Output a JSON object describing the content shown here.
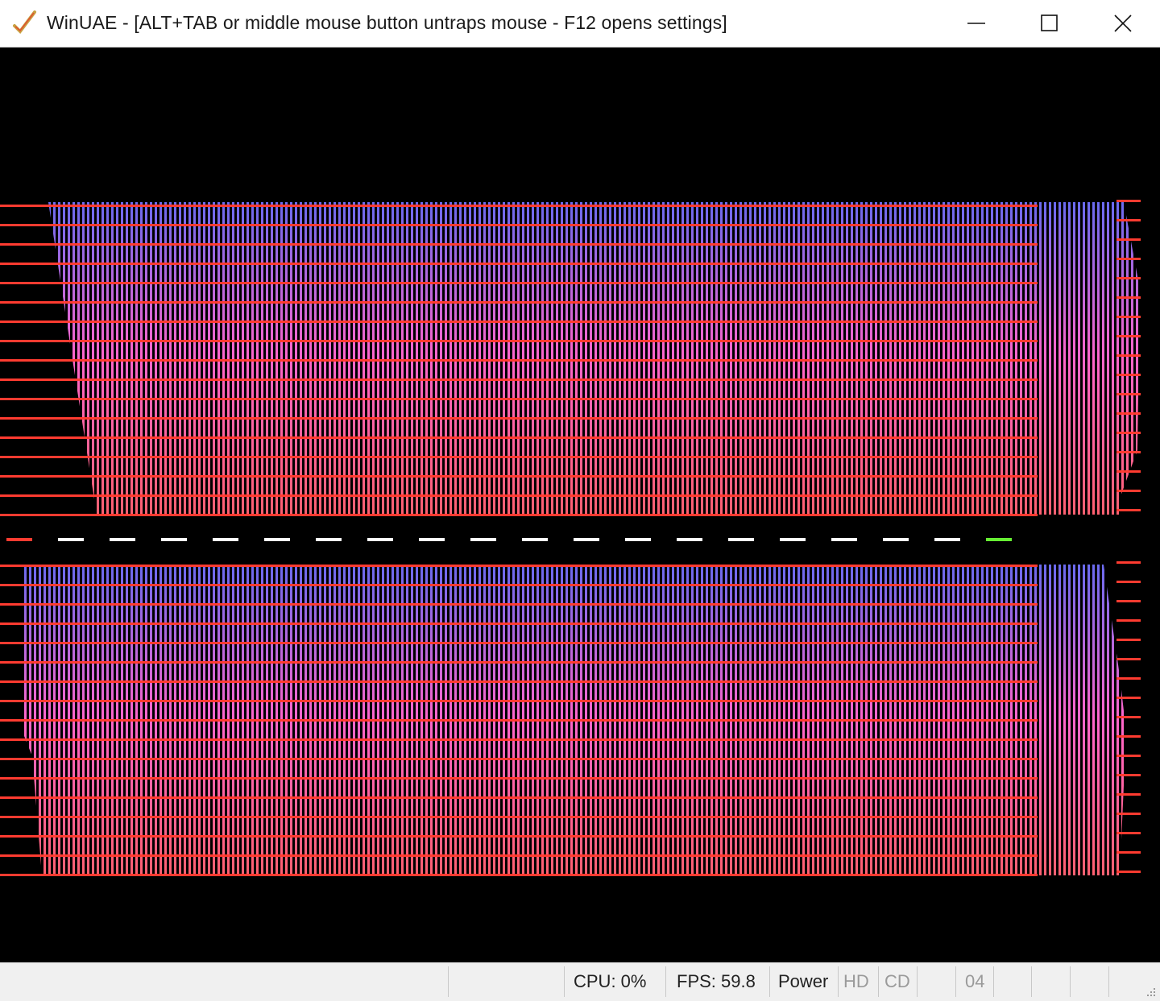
{
  "window": {
    "title": "WinUAE - [ALT+TAB or middle mouse button untraps mouse - F12 opens settings]",
    "app_icon": "winuae-checkmark-icon",
    "controls": [
      "minimize-icon",
      "maximize-icon",
      "close-icon"
    ]
  },
  "screen": {
    "background": "#000000",
    "gradient_top_color": "#6a6af0",
    "gradient_bottom_color": "#ff6070",
    "line_color": "#ff3b30",
    "divider_dash_color": "#ffffff",
    "divider_marker_color": "#66ee33"
  },
  "statusbar": {
    "cpu": "CPU: 0%",
    "fps": "FPS: 59.8",
    "power": "Power",
    "hd": "HD",
    "cd": "CD",
    "drive": "04"
  }
}
